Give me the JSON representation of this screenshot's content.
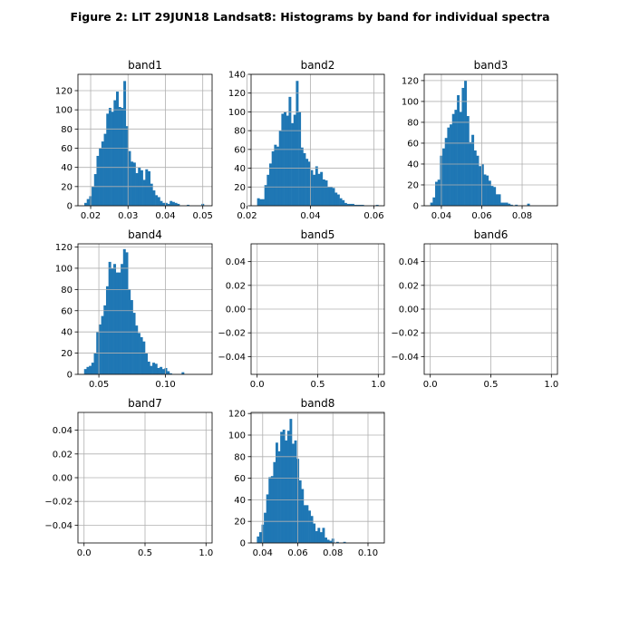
{
  "figure": {
    "title": "Figure 2: LIT 29JUN18  Landsat8: Histograms by band for individual spectra"
  },
  "colors": {
    "bar": "#1f77b4",
    "grid": "#b0b0b0",
    "axis": "#000000"
  },
  "chart_data": [
    {
      "type": "bar",
      "title": "band1",
      "grid": true,
      "xlim": [
        0.0166,
        0.0525
      ],
      "ylim": [
        0,
        137
      ],
      "xticks": [
        0.02,
        0.03,
        0.04,
        0.05
      ],
      "xtick_labels": [
        "0.02",
        "0.03",
        "0.04",
        "0.05"
      ],
      "yticks": [
        0,
        20,
        40,
        60,
        80,
        100,
        120
      ],
      "ytick_labels": [
        "0",
        "20",
        "40",
        "60",
        "80",
        "100",
        "120"
      ],
      "bin_start": 0.0183,
      "bin_width": 0.000653,
      "values": [
        3,
        7,
        10,
        20,
        33,
        52,
        60,
        67,
        75,
        96,
        102,
        98,
        110,
        119,
        103,
        102,
        130,
        83,
        57,
        46,
        45,
        34,
        40,
        37,
        27,
        38,
        36,
        23,
        16,
        11,
        9,
        5,
        3,
        3,
        2,
        5,
        4,
        3,
        2,
        0,
        0,
        0,
        1,
        0,
        0,
        0,
        0,
        0,
        2,
        0
      ]
    },
    {
      "type": "bar",
      "title": "band2",
      "grid": true,
      "xlim": [
        0.0213,
        0.0633
      ],
      "ylim": [
        0,
        140
      ],
      "xticks": [
        0.02,
        0.04,
        0.06
      ],
      "xtick_labels": [
        "0.02",
        "0.04",
        "0.06"
      ],
      "yticks": [
        0,
        20,
        40,
        60,
        80,
        100,
        120,
        140
      ],
      "ytick_labels": [
        "0",
        "20",
        "40",
        "60",
        "80",
        "100",
        "120",
        "140"
      ],
      "bin_start": 0.0232,
      "bin_width": 0.000764,
      "values": [
        8,
        7,
        7,
        22,
        33,
        45,
        58,
        65,
        63,
        80,
        98,
        100,
        96,
        116,
        88,
        97,
        133,
        100,
        62,
        56,
        50,
        47,
        38,
        33,
        42,
        34,
        36,
        28,
        27,
        20,
        20,
        19,
        14,
        12,
        8,
        6,
        3,
        2,
        2,
        2,
        1,
        1,
        1,
        1,
        0,
        0,
        0,
        0,
        0,
        1
      ]
    },
    {
      "type": "bar",
      "title": "band3",
      "grid": true,
      "xlim": [
        0.0315,
        0.0975
      ],
      "ylim": [
        0,
        126
      ],
      "xticks": [
        0.04,
        0.06,
        0.08
      ],
      "xtick_labels": [
        "0.04",
        "0.06",
        "0.08"
      ],
      "yticks": [
        0,
        20,
        40,
        60,
        80,
        100,
        120
      ],
      "ytick_labels": [
        "0",
        "20",
        "40",
        "60",
        "80",
        "100",
        "120"
      ],
      "bin_start": 0.0345,
      "bin_width": 0.0012,
      "values": [
        3,
        8,
        23,
        25,
        48,
        55,
        65,
        75,
        78,
        88,
        92,
        106,
        90,
        113,
        120,
        86,
        61,
        68,
        53,
        48,
        38,
        40,
        30,
        29,
        24,
        19,
        18,
        11,
        11,
        3,
        3,
        3,
        2,
        1,
        0,
        1,
        0,
        0,
        0,
        0,
        2,
        0,
        0,
        0,
        0,
        0,
        0,
        0,
        0,
        0
      ]
    },
    {
      "type": "bar",
      "title": "band4",
      "grid": true,
      "xlim": [
        0.0343,
        0.135
      ],
      "ylim": [
        0,
        123
      ],
      "xticks": [
        0.05,
        0.1
      ],
      "xtick_labels": [
        "0.05",
        "0.10"
      ],
      "yticks": [
        0,
        20,
        40,
        60,
        80,
        100,
        120
      ],
      "ytick_labels": [
        "0",
        "20",
        "40",
        "60",
        "80",
        "100",
        "120"
      ],
      "bin_start": 0.0389,
      "bin_width": 0.00183,
      "values": [
        5,
        7,
        8,
        11,
        20,
        40,
        47,
        55,
        65,
        83,
        106,
        100,
        104,
        96,
        96,
        104,
        118,
        115,
        80,
        70,
        58,
        46,
        39,
        35,
        31,
        20,
        12,
        8,
        11,
        10,
        6,
        7,
        5,
        6,
        3,
        1,
        0,
        0,
        0,
        0,
        2,
        0,
        0,
        0,
        0,
        0,
        0,
        0,
        0,
        0
      ]
    },
    {
      "type": "bar",
      "title": "band5",
      "grid": true,
      "xlim": [
        -0.05,
        1.05
      ],
      "ylim": [
        -0.055,
        0.055
      ],
      "xticks": [
        0.0,
        0.5,
        1.0
      ],
      "xtick_labels": [
        "0.0",
        "0.5",
        "1.0"
      ],
      "yticks": [
        -0.04,
        -0.02,
        0.0,
        0.02,
        0.04
      ],
      "ytick_labels": [
        "−0.04",
        "−0.02",
        "0.00",
        "0.02",
        "0.04"
      ],
      "bin_start": 0,
      "bin_width": 0,
      "values": []
    },
    {
      "type": "bar",
      "title": "band6",
      "grid": true,
      "xlim": [
        -0.05,
        1.05
      ],
      "ylim": [
        -0.055,
        0.055
      ],
      "xticks": [
        0.0,
        0.5,
        1.0
      ],
      "xtick_labels": [
        "0.0",
        "0.5",
        "1.0"
      ],
      "yticks": [
        -0.04,
        -0.02,
        0.0,
        0.02,
        0.04
      ],
      "ytick_labels": [
        "−0.04",
        "−0.02",
        "0.00",
        "0.02",
        "0.04"
      ],
      "bin_start": 0,
      "bin_width": 0,
      "values": []
    },
    {
      "type": "bar",
      "title": "band7",
      "grid": true,
      "xlim": [
        -0.05,
        1.05
      ],
      "ylim": [
        -0.055,
        0.055
      ],
      "xticks": [
        0.0,
        0.5,
        1.0
      ],
      "xtick_labels": [
        "0.0",
        "0.5",
        "1.0"
      ],
      "yticks": [
        -0.04,
        -0.02,
        0.0,
        0.02,
        0.04
      ],
      "ytick_labels": [
        "−0.04",
        "−0.02",
        "0.00",
        "0.02",
        "0.04"
      ],
      "bin_start": 0,
      "bin_width": 0,
      "values": []
    },
    {
      "type": "bar",
      "title": "band8",
      "grid": true,
      "xlim": [
        0.0334,
        0.1093
      ],
      "ylim": [
        0,
        121
      ],
      "xticks": [
        0.04,
        0.06,
        0.08,
        0.1
      ],
      "xtick_labels": [
        "0.04",
        "0.06",
        "0.08",
        "0.10"
      ],
      "yticks": [
        0,
        20,
        40,
        60,
        80,
        100,
        120
      ],
      "ytick_labels": [
        "0",
        "20",
        "40",
        "60",
        "80",
        "100",
        "120"
      ],
      "bin_start": 0.0367,
      "bin_width": 0.00133,
      "values": [
        6,
        10,
        17,
        28,
        45,
        61,
        62,
        75,
        93,
        85,
        103,
        105,
        95,
        104,
        115,
        92,
        95,
        78,
        58,
        50,
        35,
        35,
        30,
        25,
        18,
        11,
        14,
        10,
        14,
        5,
        3,
        2,
        4,
        0,
        1,
        0,
        0,
        1,
        0,
        0,
        0,
        0,
        0,
        0,
        0,
        0,
        0,
        0,
        0,
        0
      ]
    }
  ]
}
